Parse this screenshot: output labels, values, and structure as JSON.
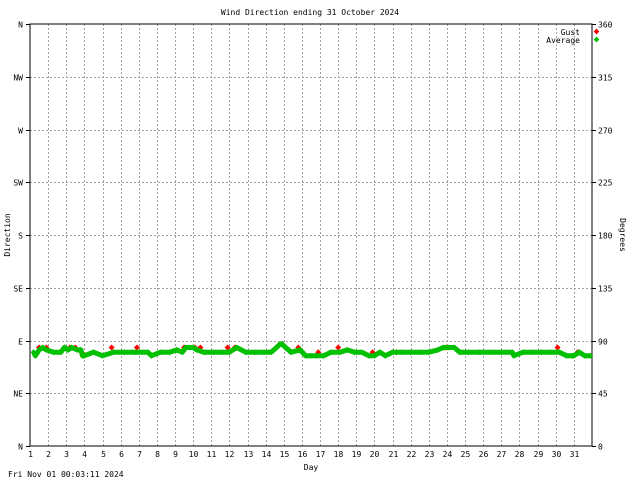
{
  "timestamp": "Fri Nov 01 00:03:11 2024",
  "colors": {
    "gust": "#ff0000",
    "average": "#00c000",
    "grid": "#a0a0a0",
    "axis": "#000000",
    "background": "#ffffff"
  },
  "chart_data": {
    "type": "scatter",
    "title": "Wind Direction ending 31 October 2024",
    "xlabel": "Day",
    "ylabel_left": "Direction",
    "ylabel_right": "Degrees",
    "xlim": [
      1,
      32
    ],
    "ylim": [
      0,
      360
    ],
    "x_ticks": [
      1,
      2,
      3,
      4,
      5,
      6,
      7,
      8,
      9,
      10,
      11,
      12,
      13,
      14,
      15,
      16,
      17,
      18,
      19,
      20,
      21,
      22,
      23,
      24,
      25,
      26,
      27,
      28,
      29,
      30,
      31
    ],
    "x_tick_labels": [
      "1",
      "2",
      "3",
      "4",
      "5",
      "6",
      "7",
      "8",
      "9",
      "10",
      "11",
      "12",
      "13",
      "14",
      "15",
      "16",
      "17",
      "18",
      "19",
      "20",
      "21",
      "22",
      "23",
      "24",
      "25",
      "26",
      "27",
      "28",
      "29",
      "30",
      "31"
    ],
    "y_left_ticks": [
      0,
      45,
      90,
      135,
      180,
      225,
      270,
      315,
      360
    ],
    "y_left_tick_labels": [
      "N",
      "NE",
      "E",
      "SE",
      "S",
      "SW",
      "W",
      "NW",
      "N"
    ],
    "y_right_ticks": [
      0,
      45,
      90,
      135,
      180,
      225,
      270,
      315,
      360
    ],
    "y_right_tick_labels": [
      "0",
      "45",
      "90",
      "135",
      "180",
      "225",
      "270",
      "315",
      "360"
    ],
    "grid": true,
    "legend_position": "top-right",
    "series": [
      {
        "name": "Gust",
        "points": [
          [
            1.5,
            84
          ],
          [
            1.9,
            84
          ],
          [
            2.9,
            84
          ],
          [
            3.2,
            84
          ],
          [
            3.5,
            84
          ],
          [
            3.9,
            79
          ],
          [
            5.5,
            84
          ],
          [
            6.9,
            84
          ],
          [
            9.5,
            84
          ],
          [
            10.1,
            84
          ],
          [
            10.4,
            84
          ],
          [
            11.9,
            84
          ],
          [
            12.3,
            84
          ],
          [
            14.7,
            86
          ],
          [
            15.8,
            84
          ],
          [
            16.9,
            80
          ],
          [
            18.0,
            84
          ],
          [
            19.9,
            80
          ],
          [
            21.2,
            80
          ],
          [
            23.9,
            84
          ],
          [
            24.0,
            84
          ],
          [
            30.1,
            84
          ],
          [
            31.2,
            80
          ]
        ]
      },
      {
        "name": "Average",
        "points": [
          [
            1.2,
            80
          ],
          [
            1.3,
            77
          ],
          [
            1.5,
            82
          ],
          [
            1.7,
            84
          ],
          [
            1.9,
            82
          ],
          [
            2.3,
            80
          ],
          [
            2.7,
            80
          ],
          [
            2.9,
            84
          ],
          [
            3.1,
            82
          ],
          [
            3.3,
            84
          ],
          [
            3.6,
            82
          ],
          [
            3.8,
            82
          ],
          [
            3.9,
            77
          ],
          [
            4.0,
            77
          ],
          [
            4.5,
            80
          ],
          [
            5.0,
            77
          ],
          [
            5.6,
            80
          ],
          [
            6.2,
            80
          ],
          [
            6.8,
            80
          ],
          [
            7.5,
            80
          ],
          [
            7.7,
            77
          ],
          [
            8.2,
            80
          ],
          [
            8.7,
            80
          ],
          [
            9.1,
            82
          ],
          [
            9.4,
            80
          ],
          [
            9.6,
            84
          ],
          [
            9.8,
            84
          ],
          [
            10.0,
            84
          ],
          [
            10.2,
            82
          ],
          [
            10.6,
            80
          ],
          [
            11.1,
            80
          ],
          [
            11.6,
            80
          ],
          [
            12.0,
            80
          ],
          [
            12.4,
            84
          ],
          [
            12.9,
            80
          ],
          [
            13.4,
            80
          ],
          [
            13.9,
            80
          ],
          [
            14.3,
            80
          ],
          [
            14.6,
            84
          ],
          [
            14.8,
            87
          ],
          [
            14.9,
            87
          ],
          [
            15.1,
            84
          ],
          [
            15.4,
            80
          ],
          [
            15.9,
            82
          ],
          [
            16.2,
            77
          ],
          [
            16.5,
            77
          ],
          [
            16.8,
            77
          ],
          [
            17.2,
            77
          ],
          [
            17.6,
            80
          ],
          [
            18.1,
            80
          ],
          [
            18.5,
            82
          ],
          [
            18.9,
            80
          ],
          [
            19.3,
            80
          ],
          [
            19.7,
            77
          ],
          [
            20.0,
            77
          ],
          [
            20.3,
            80
          ],
          [
            20.6,
            77
          ],
          [
            21.0,
            80
          ],
          [
            21.5,
            80
          ],
          [
            22.0,
            80
          ],
          [
            22.5,
            80
          ],
          [
            23.0,
            80
          ],
          [
            23.5,
            82
          ],
          [
            23.8,
            84
          ],
          [
            24.1,
            84
          ],
          [
            24.4,
            84
          ],
          [
            24.7,
            80
          ],
          [
            25.2,
            80
          ],
          [
            25.8,
            80
          ],
          [
            26.4,
            80
          ],
          [
            27.0,
            80
          ],
          [
            27.6,
            80
          ],
          [
            27.7,
            77
          ],
          [
            28.2,
            80
          ],
          [
            28.7,
            80
          ],
          [
            29.2,
            80
          ],
          [
            29.7,
            80
          ],
          [
            30.2,
            80
          ],
          [
            30.6,
            77
          ],
          [
            30.9,
            77
          ],
          [
            31.0,
            77
          ],
          [
            31.3,
            80
          ],
          [
            31.6,
            77
          ],
          [
            31.9,
            77
          ]
        ]
      }
    ]
  }
}
